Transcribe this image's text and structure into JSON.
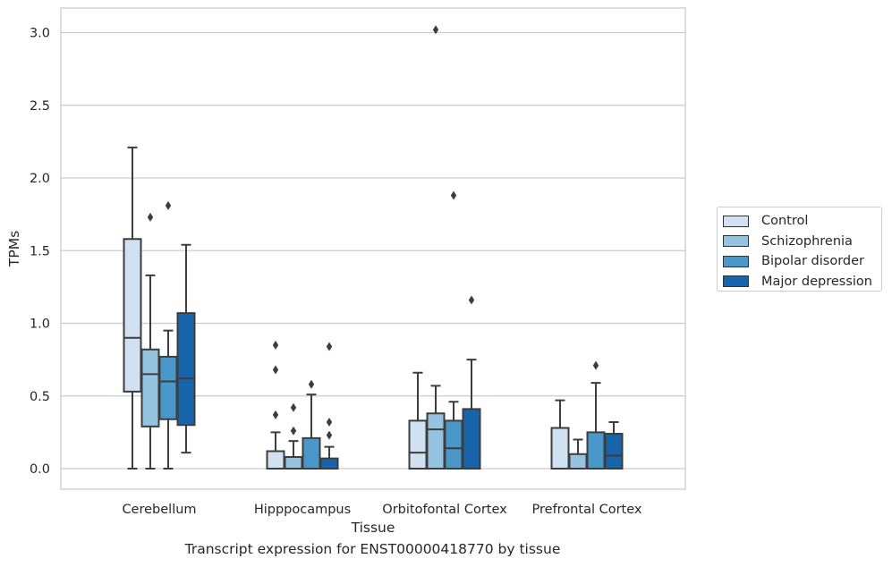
{
  "chart_data": {
    "type": "box",
    "xlabel": "Tissue",
    "ylabel": "TPMs",
    "ylim": [
      -0.15,
      3.18
    ],
    "yticks": [
      "0.0",
      "0.5",
      "1.0",
      "1.5",
      "2.0",
      "2.5",
      "3.0"
    ],
    "grid": "horizontal",
    "legend_placement": "right",
    "categories": [
      "Cerebellum",
      "Hipppocampus",
      "Orbitofontal Cortex",
      "Prefrontal Cortex"
    ],
    "series": [
      {
        "name": "Control",
        "color": "#d0e1f2",
        "boxes": [
          {
            "whisker_low": 0.0,
            "q1": 0.53,
            "median": 0.9,
            "q3": 1.58,
            "whisker_high": 2.21,
            "outliers": []
          },
          {
            "whisker_low": 0.0,
            "q1": 0.0,
            "median": 0.0,
            "q3": 0.12,
            "whisker_high": 0.25,
            "outliers": [
              0.37,
              0.68,
              0.85
            ]
          },
          {
            "whisker_low": 0.0,
            "q1": 0.0,
            "median": 0.11,
            "q3": 0.33,
            "whisker_high": 0.66,
            "outliers": []
          },
          {
            "whisker_low": 0.0,
            "q1": 0.0,
            "median": 0.0,
            "q3": 0.28,
            "whisker_high": 0.47,
            "outliers": []
          }
        ]
      },
      {
        "name": "Schizophrenia",
        "color": "#94c4df",
        "boxes": [
          {
            "whisker_low": 0.0,
            "q1": 0.29,
            "median": 0.65,
            "q3": 0.82,
            "whisker_high": 1.33,
            "outliers": [
              1.73
            ]
          },
          {
            "whisker_low": 0.0,
            "q1": 0.0,
            "median": 0.0,
            "q3": 0.08,
            "whisker_high": 0.19,
            "outliers": [
              0.26,
              0.42
            ]
          },
          {
            "whisker_low": 0.0,
            "q1": 0.0,
            "median": 0.27,
            "q3": 0.38,
            "whisker_high": 0.57,
            "outliers": [
              3.02
            ]
          },
          {
            "whisker_low": 0.0,
            "q1": 0.0,
            "median": 0.0,
            "q3": 0.1,
            "whisker_high": 0.2,
            "outliers": []
          }
        ]
      },
      {
        "name": "Bipolar disorder",
        "color": "#4a98c9",
        "boxes": [
          {
            "whisker_low": 0.0,
            "q1": 0.34,
            "median": 0.6,
            "q3": 0.77,
            "whisker_high": 0.95,
            "outliers": [
              1.81
            ]
          },
          {
            "whisker_low": 0.0,
            "q1": 0.0,
            "median": 0.0,
            "q3": 0.21,
            "whisker_high": 0.51,
            "outliers": [
              0.58
            ]
          },
          {
            "whisker_low": 0.0,
            "q1": 0.0,
            "median": 0.14,
            "q3": 0.33,
            "whisker_high": 0.46,
            "outliers": [
              1.88
            ]
          },
          {
            "whisker_low": 0.0,
            "q1": 0.0,
            "median": 0.0,
            "q3": 0.25,
            "whisker_high": 0.59,
            "outliers": [
              0.71
            ]
          }
        ]
      },
      {
        "name": "Major depression",
        "color": "#1764ab",
        "boxes": [
          {
            "whisker_low": 0.11,
            "q1": 0.3,
            "median": 0.62,
            "q3": 1.07,
            "whisker_high": 1.54,
            "outliers": []
          },
          {
            "whisker_low": 0.0,
            "q1": 0.0,
            "median": 0.0,
            "q3": 0.07,
            "whisker_high": 0.15,
            "outliers": [
              0.23,
              0.32,
              0.84
            ]
          },
          {
            "whisker_low": 0.0,
            "q1": 0.0,
            "median": 0.0,
            "q3": 0.41,
            "whisker_high": 0.75,
            "outliers": [
              1.16
            ]
          },
          {
            "whisker_low": 0.0,
            "q1": 0.0,
            "median": 0.09,
            "q3": 0.24,
            "whisker_high": 0.32,
            "outliers": []
          }
        ]
      }
    ]
  },
  "caption": "Transcript expression for ENST00000418770 by tissue"
}
